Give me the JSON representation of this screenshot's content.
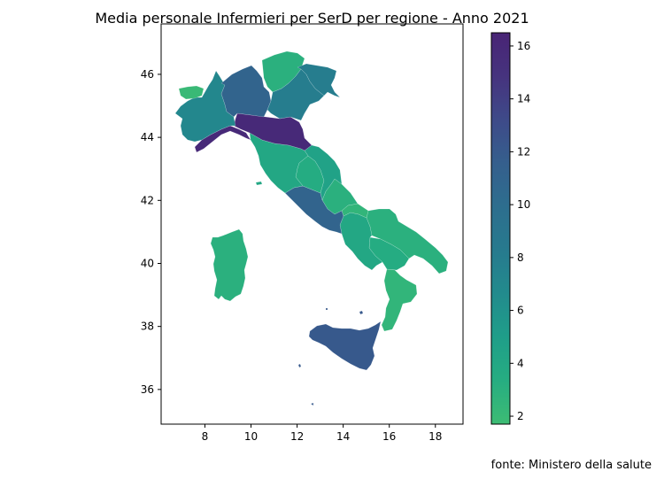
{
  "title": "Media personale Infermieri per SerD per regione - Anno 2021",
  "source": "fonte: Ministero della salute",
  "map": {
    "x_ticks": [
      "8",
      "10",
      "12",
      "14",
      "16",
      "18"
    ],
    "y_ticks": [
      "36",
      "38",
      "40",
      "42",
      "44",
      "46"
    ],
    "x_range": [
      6.1,
      19.2
    ],
    "y_range": [
      34.9,
      47.6
    ],
    "regions": [
      {
        "name": "Valle d'Aosta",
        "value": 2
      },
      {
        "name": "Piemonte",
        "value": 7
      },
      {
        "name": "Liguria",
        "value": 16
      },
      {
        "name": "Lombardia",
        "value": 11
      },
      {
        "name": "Trentino-Alto Adige",
        "value": 3
      },
      {
        "name": "Veneto",
        "value": 8
      },
      {
        "name": "Friuli-Venezia Giulia",
        "value": 8
      },
      {
        "name": "Emilia-Romagna",
        "value": 16
      },
      {
        "name": "Toscana",
        "value": 4
      },
      {
        "name": "Umbria",
        "value": 3.5
      },
      {
        "name": "Marche",
        "value": 4.5
      },
      {
        "name": "Lazio",
        "value": 11
      },
      {
        "name": "Abruzzo",
        "value": 3
      },
      {
        "name": "Molise",
        "value": 2.5
      },
      {
        "name": "Campania",
        "value": 4
      },
      {
        "name": "Puglia",
        "value": 3
      },
      {
        "name": "Basilicata",
        "value": 3.5
      },
      {
        "name": "Calabria",
        "value": 2.5
      },
      {
        "name": "Sicilia",
        "value": 12
      },
      {
        "name": "Sardegna",
        "value": 3
      }
    ]
  },
  "colorbar": {
    "ticks": [
      "2",
      "4",
      "6",
      "8",
      "10",
      "12",
      "14",
      "16"
    ],
    "range": [
      1.7,
      16.5
    ],
    "colors": [
      "#3dbc74",
      "#26ad81",
      "#1f9e89",
      "#228b8d",
      "#277a8e",
      "#2d6e8e",
      "#355f8d",
      "#3e4a89",
      "#46337e",
      "#482475"
    ]
  }
}
